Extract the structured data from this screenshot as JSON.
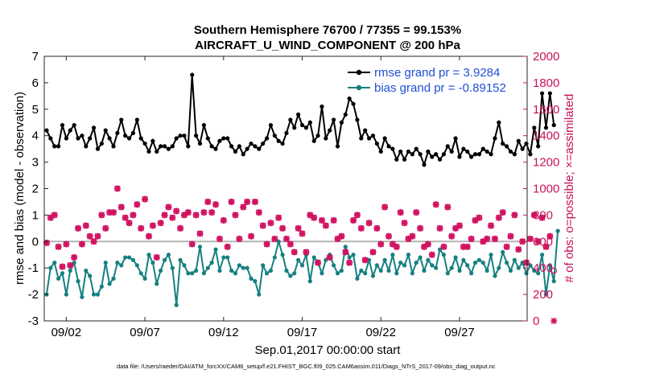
{
  "chart_data": {
    "type": "line",
    "title": "Southern Hemisphere 76700 / 77355 = 99.153%",
    "subtitle": "AIRCRAFT_U_WIND_COMPONENT @ 200 hPa",
    "xlabel": "Sep.01,2017 00:00:00 start",
    "ylabel": "rmse and bias (model - observation)",
    "ylabel_right": "# of obs: o=possible; ×=assimilated",
    "footer": "data file: /Users/raeder/DAI/ATM_forcXX/CAM6_setup/f.e21.FHIST_BGC.f09_025.CAM6assim.011/Diags_NTrS_2017-09/obs_diag_output.nc",
    "xlim": [
      0.6,
      31.3
    ],
    "xticks": [
      {
        "x": 2,
        "label": "09/02"
      },
      {
        "x": 7,
        "label": "09/07"
      },
      {
        "x": 12,
        "label": "09/12"
      },
      {
        "x": 17,
        "label": "09/17"
      },
      {
        "x": 22,
        "label": "09/22"
      },
      {
        "x": 27,
        "label": "09/27"
      }
    ],
    "ylim": [
      -3,
      7
    ],
    "yticks": [
      -3,
      -2,
      -1,
      0,
      1,
      2,
      3,
      4,
      5,
      6,
      7
    ],
    "ylim_right": [
      0,
      2000
    ],
    "yticks_right": [
      0,
      200,
      400,
      600,
      800,
      1000,
      1200,
      1400,
      1600,
      1800,
      2000
    ],
    "zero_line": 0,
    "legend_position": "top-right",
    "legend": [
      "rmse grand pr = 3.9284",
      "bias grand pr = -0.89152"
    ],
    "x_start": 0.75,
    "x_step": 0.25,
    "series": [
      {
        "name": "rmse",
        "axis": "left",
        "color": "#000000",
        "values": [
          4.2,
          3.9,
          3.6,
          3.6,
          4.4,
          3.9,
          4.2,
          4.4,
          3.9,
          4.0,
          3.6,
          3.9,
          4.3,
          3.5,
          3.7,
          4.2,
          3.9,
          3.6,
          4.1,
          4.6,
          4.0,
          3.9,
          4.1,
          4.6,
          3.9,
          3.7,
          3.4,
          3.8,
          3.4,
          3.6,
          3.6,
          3.5,
          3.6,
          3.9,
          4.0,
          4.0,
          3.6,
          6.3,
          4.0,
          3.7,
          4.4,
          3.9,
          3.6,
          3.5,
          3.8,
          3.9,
          3.9,
          3.6,
          3.4,
          3.6,
          3.3,
          3.5,
          3.7,
          3.6,
          3.5,
          3.7,
          3.9,
          4.4,
          4.0,
          3.8,
          3.7,
          4.1,
          4.6,
          4.3,
          4.8,
          4.4,
          4.3,
          4.5,
          3.8,
          4.0,
          5.1,
          3.9,
          4.2,
          4.6,
          3.6,
          4.5,
          4.8,
          5.4,
          5.2,
          4.6,
          3.9,
          4.2,
          3.9,
          4.0,
          3.7,
          3.4,
          3.9,
          3.6,
          3.5,
          3.1,
          3.4,
          3.1,
          3.4,
          3.3,
          3.5,
          3.3,
          2.9,
          3.4,
          3.2,
          3.3,
          3.1,
          3.3,
          3.6,
          3.4,
          3.9,
          3.2,
          3.5,
          3.4,
          3.2,
          3.3,
          3.3,
          3.5,
          3.4,
          3.3,
          3.9,
          4.5,
          3.7,
          3.6,
          3.4,
          3.3,
          3.8,
          3.5,
          3.7,
          3.3,
          4.3,
          3.6,
          5.6,
          4.3,
          5.6,
          4.4
        ]
      },
      {
        "name": "bias",
        "axis": "left",
        "color": "#168080",
        "values": [
          -2.0,
          -1.0,
          -0.8,
          -1.4,
          -1.2,
          -2.0,
          -1.1,
          -0.8,
          -1.5,
          -2.1,
          -1.1,
          -1.3,
          -2.0,
          -2.0,
          -1.7,
          -0.8,
          -1.6,
          -1.4,
          -0.8,
          -0.9,
          -0.6,
          -0.6,
          -0.7,
          -0.9,
          -1.2,
          -1.4,
          -0.5,
          -0.8,
          -1.6,
          -1.1,
          -0.7,
          -0.5,
          -1.0,
          -2.4,
          -0.7,
          -0.9,
          -1.2,
          -1.2,
          -1.1,
          -0.2,
          -1.2,
          -1.0,
          -0.8,
          -0.3,
          -1.1,
          -0.6,
          -0.6,
          -1.1,
          -1.2,
          -0.9,
          -1.0,
          -1.0,
          -1.4,
          -1.5,
          -2.0,
          -0.9,
          -1.2,
          -1.1,
          -0.6,
          0.0,
          -0.5,
          -1.1,
          -1.3,
          -1.2,
          -0.7,
          -0.9,
          -0.5,
          -1.5,
          -0.6,
          -0.8,
          -1.2,
          -0.7,
          -0.5,
          -0.9,
          -1.2,
          -1.1,
          -0.2,
          -0.6,
          -0.5,
          -1.4,
          -1.1,
          -1.2,
          -0.7,
          -1.3,
          -0.9,
          -1.1,
          -0.7,
          -1.1,
          -0.5,
          -1.2,
          -0.8,
          -0.9,
          -0.5,
          -1.2,
          -0.8,
          -0.6,
          -1.1,
          -0.7,
          -0.9,
          -1.0,
          -0.3,
          -0.5,
          -1.2,
          -1.0,
          -0.6,
          -1.1,
          -0.7,
          -0.9,
          -1.2,
          -0.8,
          -0.7,
          -0.8,
          -1.1,
          -0.5,
          -1.3,
          -1.0,
          -0.4,
          -0.8,
          -1.1,
          -0.7,
          -1.0,
          -0.8,
          -1.2,
          -0.9,
          -1.1,
          -1.2,
          -0.5,
          -2.0,
          -0.9,
          -1.5,
          0.4
        ]
      },
      {
        "name": "possible",
        "axis": "right",
        "marker": "o",
        "color": "#d01060",
        "values": [
          590,
          780,
          800,
          560,
          410,
          580,
          420,
          480,
          700,
          580,
          720,
          640,
          600,
          640,
          800,
          700,
          820,
          820,
          1000,
          860,
          780,
          740,
          800,
          880,
          700,
          920,
          640,
          720,
          480,
          740,
          800,
          860,
          780,
          830,
          700,
          800,
          820,
          580,
          800,
          660,
          820,
          900,
          820,
          880,
          620,
          760,
          560,
          900,
          800,
          620,
          860,
          900,
          640,
          900,
          820,
          720,
          580,
          740,
          620,
          780,
          700,
          620,
          580,
          520,
          700,
          660,
          520,
          800,
          780,
          440,
          760,
          720,
          480,
          760,
          620,
          640,
          520,
          440,
          760,
          800,
          700,
          460,
          740,
          520,
          700,
          580,
          860,
          640,
          580,
          560,
          820,
          740,
          620,
          640,
          820,
          700,
          560,
          580,
          500,
          880,
          700,
          560,
          860,
          640,
          700,
          720,
          560,
          560,
          620,
          760,
          780,
          600,
          620,
          720,
          620,
          780,
          820,
          560,
          640,
          800,
          540,
          600,
          440,
          620,
          800,
          600,
          780,
          560,
          640,
          380
        ]
      },
      {
        "name": "assimilated",
        "axis": "right",
        "marker": "x",
        "color": "#d01060",
        "values": [
          590,
          780,
          800,
          560,
          410,
          580,
          420,
          480,
          700,
          580,
          720,
          640,
          600,
          640,
          800,
          700,
          820,
          820,
          1000,
          860,
          780,
          740,
          800,
          880,
          700,
          920,
          640,
          720,
          480,
          740,
          800,
          860,
          780,
          830,
          700,
          800,
          820,
          580,
          800,
          660,
          820,
          900,
          820,
          880,
          620,
          760,
          560,
          900,
          800,
          620,
          860,
          900,
          640,
          900,
          820,
          720,
          580,
          740,
          620,
          780,
          700,
          620,
          580,
          520,
          700,
          660,
          520,
          800,
          780,
          440,
          760,
          720,
          480,
          760,
          620,
          640,
          520,
          440,
          760,
          800,
          700,
          460,
          740,
          520,
          700,
          580,
          860,
          640,
          580,
          560,
          820,
          740,
          620,
          640,
          820,
          700,
          560,
          580,
          500,
          880,
          700,
          560,
          860,
          640,
          700,
          720,
          560,
          560,
          620,
          760,
          780,
          600,
          620,
          720,
          620,
          780,
          820,
          560,
          640,
          800,
          540,
          600,
          440,
          620,
          800,
          600,
          780,
          560,
          640,
          0
        ]
      }
    ]
  }
}
